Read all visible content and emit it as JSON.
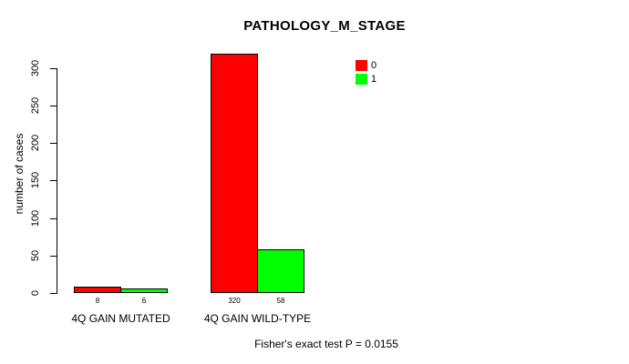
{
  "title": "PATHOLOGY_M_STAGE",
  "chart_data": {
    "type": "bar",
    "title": "PATHOLOGY_M_STAGE",
    "ylabel": "number of cases",
    "xlabel": "",
    "categories": [
      "4Q GAIN MUTATED",
      "4Q GAIN WILD-TYPE"
    ],
    "series": [
      {
        "name": "0",
        "color": "#ff0000",
        "values": [
          8,
          320
        ]
      },
      {
        "name": "1",
        "color": "#00ff00",
        "values": [
          6,
          58
        ]
      }
    ],
    "yticks": [
      0,
      50,
      100,
      150,
      200,
      250,
      300
    ],
    "ylim": [
      0,
      300
    ],
    "grid": false,
    "legend_position": "top-right",
    "legend_entries": [
      {
        "label": "0",
        "color": "#ff0000"
      },
      {
        "label": "1",
        "color": "#00ff00"
      }
    ],
    "bar_value_labels": [
      [
        "8",
        "6"
      ],
      [
        "320",
        "58"
      ]
    ],
    "footer": "Fisher's exact test P = 0.0155"
  },
  "colors": {
    "background": "#ffffff",
    "text": "#000000",
    "axis": "#000000",
    "series_0": "#ff0000",
    "series_1": "#00ff00"
  }
}
